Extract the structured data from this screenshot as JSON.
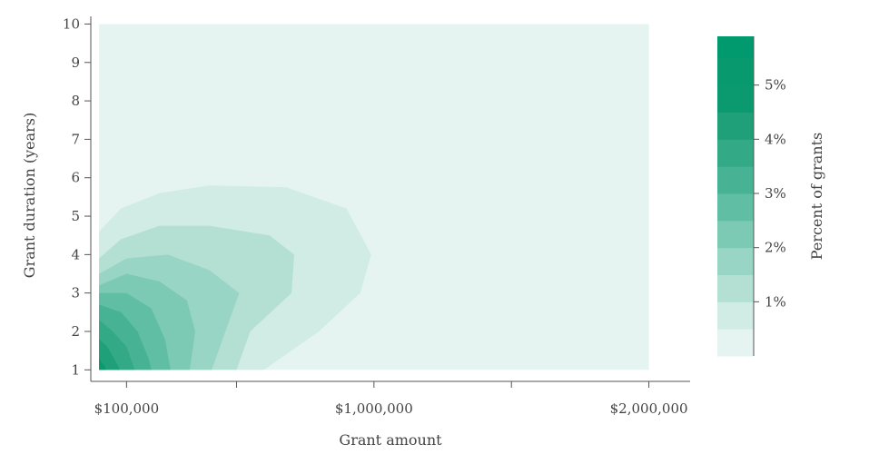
{
  "chart_data": {
    "type": "contour",
    "xlabel": "Grant amount",
    "ylabel": "Grant duration (years)",
    "x_scale": "linear",
    "xlim": [
      -30000,
      2150000
    ],
    "ylim": [
      0.7,
      10.2
    ],
    "data_extent": {
      "x": [
        0,
        2000000
      ],
      "y": [
        1,
        10
      ]
    },
    "x_ticks": [
      {
        "value": 100000,
        "label": "$100,000"
      },
      {
        "value": 500000,
        "label": ""
      },
      {
        "value": 1000000,
        "label": "$1,000,000"
      },
      {
        "value": 1500000,
        "label": ""
      },
      {
        "value": 2000000,
        "label": "$2,000,000"
      }
    ],
    "y_ticks": [
      {
        "value": 1,
        "label": "1"
      },
      {
        "value": 2,
        "label": "2"
      },
      {
        "value": 3,
        "label": "3"
      },
      {
        "value": 4,
        "label": "4"
      },
      {
        "value": 5,
        "label": "5"
      },
      {
        "value": 6,
        "label": "6"
      },
      {
        "value": 7,
        "label": "7"
      },
      {
        "value": 8,
        "label": "8"
      },
      {
        "value": 9,
        "label": "9"
      },
      {
        "value": 10,
        "label": "10"
      }
    ],
    "background_color": "#e5f4f0",
    "contour_levels": [
      {
        "min_percent": 0.5,
        "color": "#d0ece4",
        "outline": [
          [
            0,
            4.6
          ],
          [
            80000,
            5.2
          ],
          [
            220000,
            5.6
          ],
          [
            400000,
            5.8
          ],
          [
            680000,
            5.75
          ],
          [
            900000,
            5.2
          ],
          [
            990000,
            4.0
          ],
          [
            950000,
            3.0
          ],
          [
            800000,
            2.0
          ],
          [
            600000,
            1.0
          ],
          [
            0,
            1.0
          ]
        ]
      },
      {
        "min_percent": 1.0,
        "color": "#b4e0d4",
        "outline": [
          [
            0,
            3.9
          ],
          [
            80000,
            4.4
          ],
          [
            220000,
            4.75
          ],
          [
            400000,
            4.75
          ],
          [
            620000,
            4.5
          ],
          [
            710000,
            4.0
          ],
          [
            700000,
            3.0
          ],
          [
            550000,
            2.0
          ],
          [
            500000,
            1.0
          ],
          [
            0,
            1.0
          ]
        ]
      },
      {
        "min_percent": 1.5,
        "color": "#99d5c4",
        "outline": [
          [
            0,
            3.5
          ],
          [
            100000,
            3.9
          ],
          [
            250000,
            4.0
          ],
          [
            400000,
            3.6
          ],
          [
            510000,
            3.0
          ],
          [
            460000,
            2.0
          ],
          [
            410000,
            1.0
          ],
          [
            0,
            1.0
          ]
        ]
      },
      {
        "min_percent": 2.0,
        "color": "#7ccab3",
        "outline": [
          [
            0,
            3.2
          ],
          [
            100000,
            3.5
          ],
          [
            220000,
            3.3
          ],
          [
            320000,
            2.8
          ],
          [
            350000,
            2.0
          ],
          [
            330000,
            1.0
          ],
          [
            0,
            1.0
          ]
        ]
      },
      {
        "min_percent": 2.5,
        "color": "#5fbea3",
        "outline": [
          [
            0,
            3.0
          ],
          [
            100000,
            3.0
          ],
          [
            190000,
            2.6
          ],
          [
            240000,
            1.8
          ],
          [
            260000,
            1.0
          ],
          [
            0,
            1.0
          ]
        ]
      },
      {
        "min_percent": 3.0,
        "color": "#47b394",
        "outline": [
          [
            0,
            2.7
          ],
          [
            80000,
            2.5
          ],
          [
            140000,
            2.0
          ],
          [
            180000,
            1.3
          ],
          [
            190000,
            1.0
          ],
          [
            0,
            1.0
          ]
        ]
      },
      {
        "min_percent": 3.5,
        "color": "#33a986",
        "outline": [
          [
            0,
            2.3
          ],
          [
            50000,
            2.0
          ],
          [
            100000,
            1.6
          ],
          [
            130000,
            1.0
          ],
          [
            0,
            1.0
          ]
        ]
      },
      {
        "min_percent": 4.0,
        "color": "#1fa079",
        "outline": [
          [
            0,
            1.8
          ],
          [
            30000,
            1.6
          ],
          [
            70000,
            1.1
          ],
          [
            75000,
            1.0
          ],
          [
            0,
            1.0
          ]
        ]
      },
      {
        "min_percent": 4.5,
        "color": "#0b9a70",
        "outline": [
          [
            0,
            1.3
          ],
          [
            20000,
            1.1
          ],
          [
            25000,
            1.0
          ],
          [
            0,
            1.0
          ]
        ]
      }
    ],
    "colorbar": {
      "label": "Percent of grants",
      "range": [
        0,
        5.9
      ],
      "bins": [
        {
          "from": 0.0,
          "to": 0.5,
          "color": "#e5f4f0"
        },
        {
          "from": 0.5,
          "to": 1.0,
          "color": "#d0ece4"
        },
        {
          "from": 1.0,
          "to": 1.5,
          "color": "#b4e0d4"
        },
        {
          "from": 1.5,
          "to": 2.0,
          "color": "#99d5c4"
        },
        {
          "from": 2.0,
          "to": 2.5,
          "color": "#7ccab3"
        },
        {
          "from": 2.5,
          "to": 3.0,
          "color": "#5fbea3"
        },
        {
          "from": 3.0,
          "to": 3.5,
          "color": "#47b394"
        },
        {
          "from": 3.5,
          "to": 4.0,
          "color": "#33a986"
        },
        {
          "from": 4.0,
          "to": 4.5,
          "color": "#1fa079"
        },
        {
          "from": 4.5,
          "to": 5.0,
          "color": "#0b9a70"
        },
        {
          "from": 5.0,
          "to": 5.5,
          "color": "#09996f"
        },
        {
          "from": 5.5,
          "to": 5.9,
          "color": "#009a6e"
        }
      ],
      "ticks": [
        {
          "value": 1,
          "label": "1%"
        },
        {
          "value": 2,
          "label": "2%"
        },
        {
          "value": 3,
          "label": "3%"
        },
        {
          "value": 4,
          "label": "4%"
        },
        {
          "value": 5,
          "label": "5%"
        }
      ]
    }
  }
}
